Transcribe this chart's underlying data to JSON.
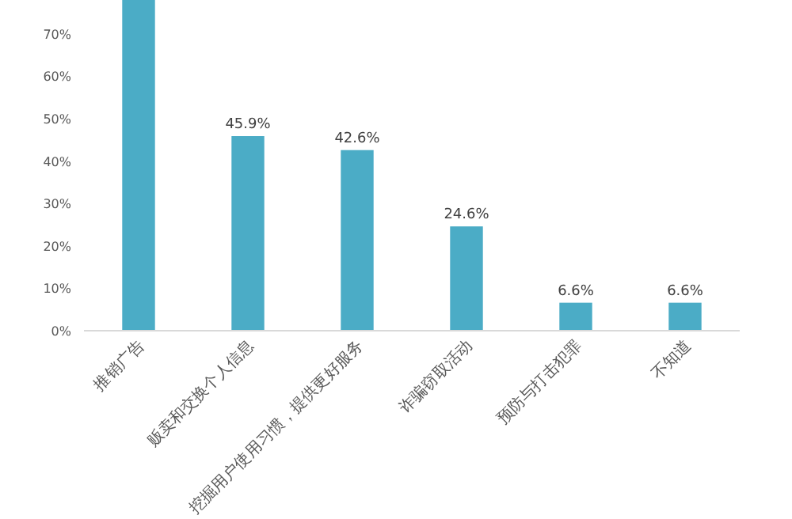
{
  "chart_data": {
    "type": "bar",
    "categories": [
      "推销广告",
      "贩卖和交换个人信息",
      "挖掘用户使用习惯，提供更好服务",
      "诈骗窃取活动",
      "预防与打击犯罪",
      "不知道"
    ],
    "values": [
      78,
      45.9,
      42.6,
      24.6,
      6.6,
      6.6
    ],
    "value_labels": [
      null,
      "45.9%",
      "42.6%",
      "24.6%",
      "6.6%",
      "6.6%"
    ],
    "color": "#4bacc6",
    "ylim": [
      0,
      78
    ],
    "yticks": [
      {
        "value": 0,
        "label": "0%"
      },
      {
        "value": 10,
        "label": "10%"
      },
      {
        "value": 20,
        "label": "20%"
      },
      {
        "value": 30,
        "label": "30%"
      },
      {
        "value": 40,
        "label": "40%"
      },
      {
        "value": 50,
        "label": "50%"
      },
      {
        "value": 60,
        "label": "60%"
      },
      {
        "value": 70,
        "label": "70%"
      }
    ],
    "grid": false
  }
}
